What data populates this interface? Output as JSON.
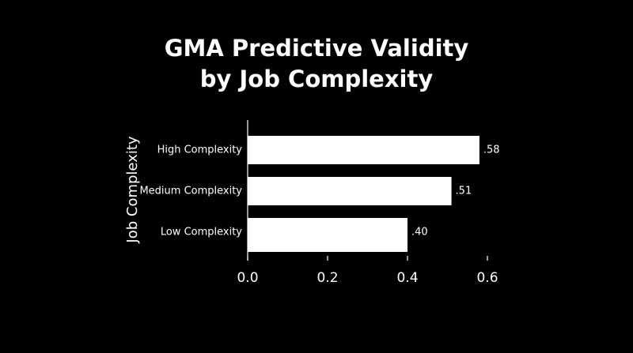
{
  "chart_data": {
    "type": "bar",
    "orientation": "horizontal",
    "title": "GMA Predictive Validity by Job Complexity",
    "y_label": "Job Complexity",
    "categories": [
      "High Complexity",
      "Medium Complexity",
      "Low Complexity"
    ],
    "values": [
      0.58,
      0.51,
      0.4
    ],
    "value_labels": [
      ".58",
      ".51",
      ".40"
    ],
    "color": "#ffffff",
    "xlim": [
      0,
      0.6
    ],
    "xticks": [
      {
        "value": 0,
        "label": "0.0"
      },
      0.2,
      0.4,
      0.6
    ]
  }
}
